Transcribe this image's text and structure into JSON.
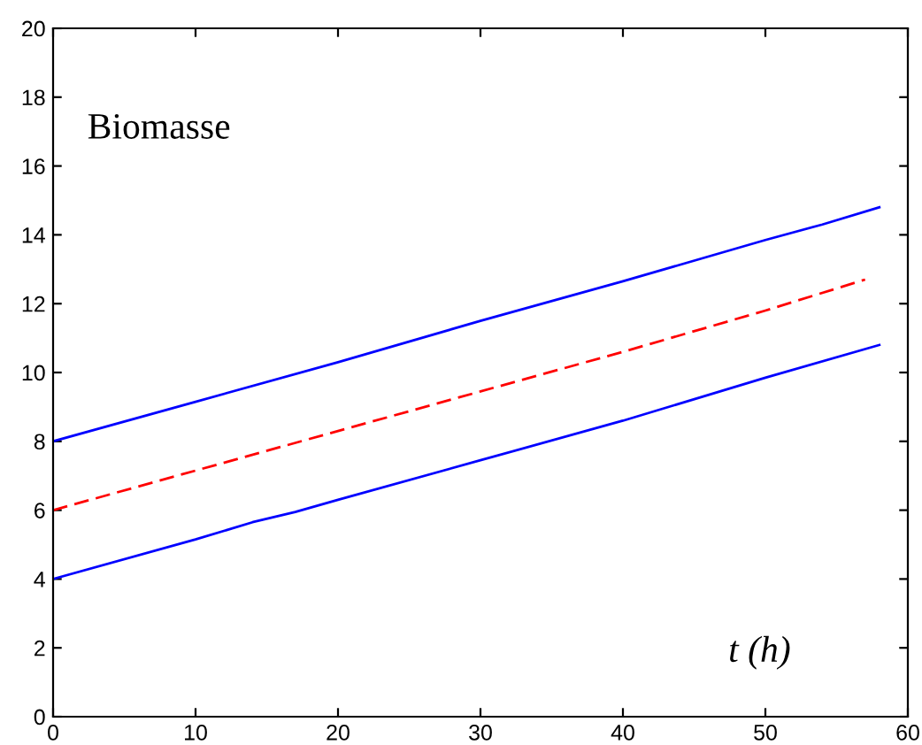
{
  "chart_data": {
    "type": "line",
    "title": "Biomasse",
    "xlabel": "t (h)",
    "xlim": [
      0,
      60
    ],
    "xticks": [
      0,
      10,
      20,
      30,
      40,
      50,
      60
    ],
    "ylim": [
      0,
      20
    ],
    "yticks": [
      0,
      2,
      4,
      6,
      8,
      10,
      12,
      14,
      16,
      18,
      20
    ],
    "grid": false,
    "marker": "none",
    "series": [
      {
        "color": "#0000ff",
        "line_style": "solid",
        "x": [
          0,
          10,
          20,
          30,
          40,
          50,
          54,
          58
        ],
        "values": [
          8.0,
          9.15,
          10.3,
          11.5,
          12.65,
          13.85,
          14.3,
          14.8
        ]
      },
      {
        "color": "#ff0000",
        "line_style": "dashed",
        "x": [
          0,
          10,
          20,
          30,
          40,
          50,
          57
        ],
        "values": [
          6.0,
          7.15,
          8.3,
          9.45,
          10.6,
          11.8,
          12.7
        ]
      },
      {
        "color": "#0000ff",
        "line_style": "solid",
        "x": [
          0,
          10,
          14,
          17,
          20,
          30,
          40,
          50,
          58
        ],
        "values": [
          4.0,
          5.15,
          5.65,
          5.95,
          6.3,
          7.45,
          8.6,
          9.85,
          10.8
        ]
      }
    ]
  }
}
